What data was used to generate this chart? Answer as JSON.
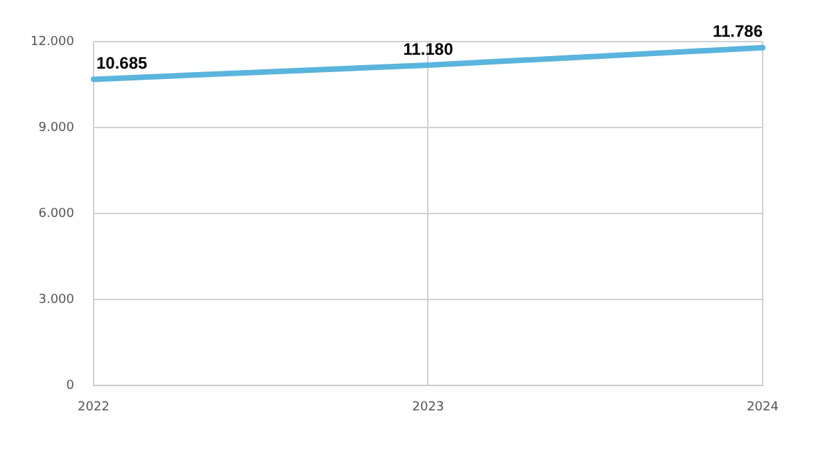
{
  "chart_data": {
    "type": "line",
    "categories": [
      "2022",
      "2023",
      "2024"
    ],
    "series": [
      {
        "color": "#5ab4dc",
        "values": [
          10685,
          11180,
          11786
        ],
        "value_labels": [
          "10.685",
          "11.180",
          "11.786"
        ]
      }
    ],
    "ylim": [
      0,
      12000
    ],
    "yticks": [
      0,
      {
        "value": 3000,
        "label": "3.000"
      },
      {
        "value": 6000,
        "label": "6.000"
      },
      {
        "value": 9000,
        "label": "9.000"
      },
      {
        "value": 12000,
        "label": "12.000"
      }
    ],
    "grid": true,
    "legend": false,
    "marker": "none",
    "line_style": "solid"
  }
}
